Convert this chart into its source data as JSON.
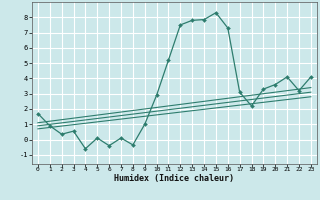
{
  "xlabel": "Humidex (Indice chaleur)",
  "bg_color": "#cce8ea",
  "grid_color": "#ffffff",
  "line_color": "#2e7d6e",
  "xlim": [
    -0.5,
    23.5
  ],
  "ylim": [
    -1.6,
    9.0
  ],
  "yticks": [
    -1,
    0,
    1,
    2,
    3,
    4,
    5,
    6,
    7,
    8
  ],
  "xticks": [
    0,
    1,
    2,
    3,
    4,
    5,
    6,
    7,
    8,
    9,
    10,
    11,
    12,
    13,
    14,
    15,
    16,
    17,
    18,
    19,
    20,
    21,
    22,
    23
  ],
  "main_x": [
    0,
    1,
    2,
    3,
    4,
    5,
    6,
    7,
    8,
    9,
    10,
    11,
    12,
    13,
    14,
    15,
    16,
    17,
    18,
    19,
    20,
    21,
    22,
    23
  ],
  "main_y": [
    1.7,
    0.9,
    0.35,
    0.55,
    -0.6,
    0.1,
    -0.4,
    0.1,
    -0.35,
    1.0,
    2.9,
    5.2,
    7.5,
    7.8,
    7.85,
    8.3,
    7.3,
    3.1,
    2.2,
    3.3,
    3.6,
    4.1,
    3.2,
    4.1
  ],
  "line1_x": [
    0,
    23
  ],
  "line1_y": [
    0.7,
    2.8
  ],
  "line2_x": [
    0,
    23
  ],
  "line2_y": [
    0.9,
    3.1
  ],
  "line3_x": [
    0,
    23
  ],
  "line3_y": [
    1.1,
    3.4
  ]
}
